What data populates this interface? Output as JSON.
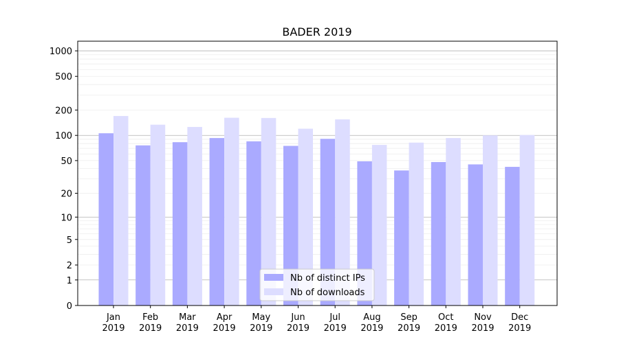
{
  "chart_data": {
    "type": "bar",
    "title": "BADER 2019",
    "xlabel": "",
    "ylabel": "",
    "y_scale": "symlog",
    "ylim": [
      0,
      1300
    ],
    "yticks": [
      0,
      1,
      2,
      5,
      10,
      20,
      50,
      100,
      200,
      500,
      1000
    ],
    "categories": [
      [
        "Jan",
        "2019"
      ],
      [
        "Feb",
        "2019"
      ],
      [
        "Mar",
        "2019"
      ],
      [
        "Apr",
        "2019"
      ],
      [
        "May",
        "2019"
      ],
      [
        "Jun",
        "2019"
      ],
      [
        "Jul",
        "2019"
      ],
      [
        "Aug",
        "2019"
      ],
      [
        "Sep",
        "2019"
      ],
      [
        "Oct",
        "2019"
      ],
      [
        "Nov",
        "2019"
      ],
      [
        "Dec",
        "2019"
      ]
    ],
    "series": [
      {
        "name": "Nb of distinct IPs",
        "color": "#aaaaff",
        "values": [
          106,
          76,
          83,
          93,
          85,
          75,
          91,
          49,
          38,
          48,
          45,
          42
        ]
      },
      {
        "name": "Nb of downloads",
        "color": "#ddddff",
        "values": [
          170,
          134,
          126,
          162,
          161,
          120,
          155,
          77,
          82,
          93,
          100,
          101
        ]
      }
    ],
    "grid": true,
    "legend": {
      "placement": "lower-center"
    }
  }
}
